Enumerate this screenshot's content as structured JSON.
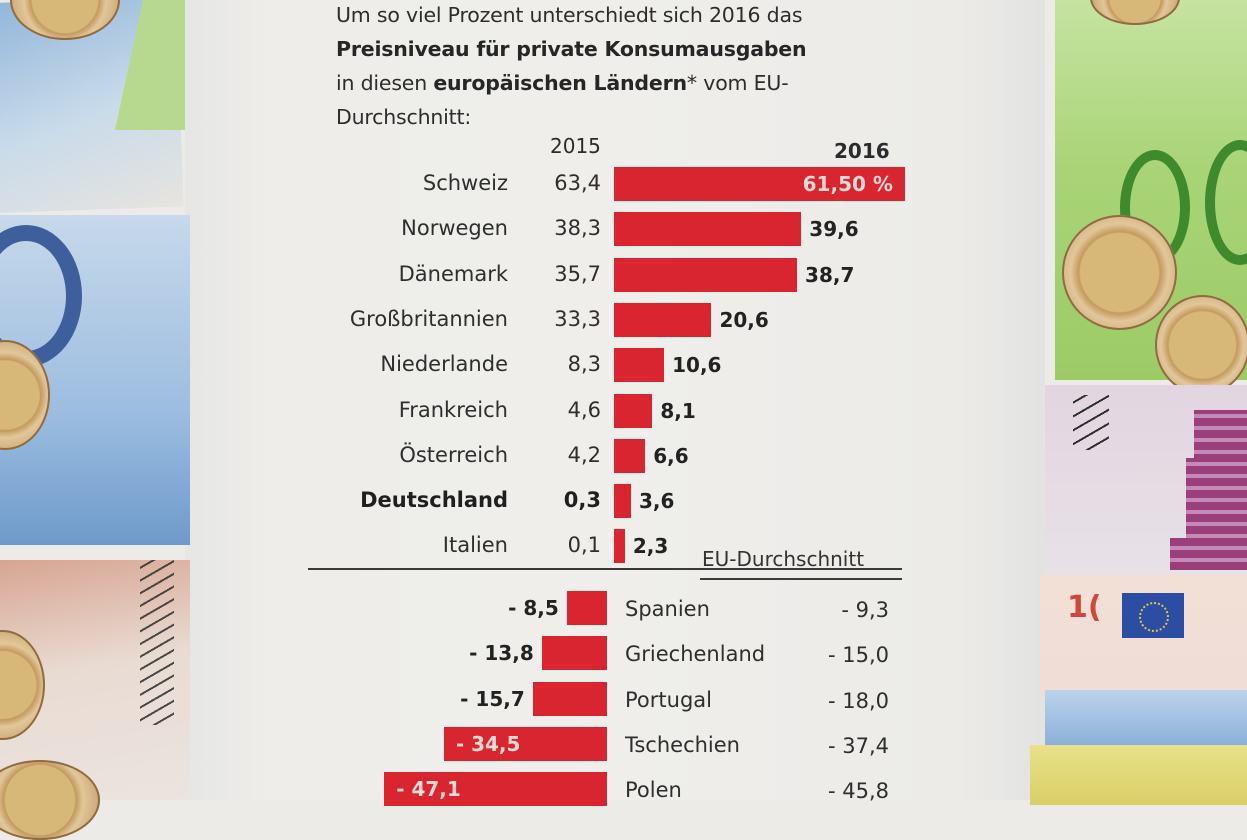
{
  "title": {
    "line1": "Um so viel Prozent unterschiedt sich 2016 das",
    "line2_bold": "Preisniveau für private Konsumausgaben",
    "line3_pre": "in diesen ",
    "line3_bold": "europäischen Ländern",
    "line3_post": "* vom EU-",
    "line4": "Durchschnitt:"
  },
  "headers": {
    "col_2015": "2015",
    "col_2016": "2016"
  },
  "eu_average_label": "EU-Durchschnitt",
  "colors": {
    "bar": "#d8252f",
    "text": "#2e2e2e",
    "paper": "#efeeeb"
  },
  "chart_data": {
    "type": "bar",
    "orientation": "horizontal",
    "title": "Um so viel Prozent unterschiedt sich 2016 das Preisniveau für private Konsumausgaben in diesen europäischen Ländern* vom EU-Durchschnitt:",
    "reference_line": "EU-Durchschnitt",
    "series": [
      {
        "name": "2016",
        "drawn_as": "bars"
      },
      {
        "name": "2015",
        "drawn_as": "text"
      }
    ],
    "above_average": [
      {
        "country": "Schweiz",
        "v2015": "63,4",
        "v2016": "61,50 %",
        "value2016": 61.5,
        "bold": false,
        "label_inside": true
      },
      {
        "country": "Norwegen",
        "v2015": "38,3",
        "v2016": "39,6",
        "value2016": 39.6,
        "bold": false,
        "label_inside": false
      },
      {
        "country": "Dänemark",
        "v2015": "35,7",
        "v2016": "38,7",
        "value2016": 38.7,
        "bold": false,
        "label_inside": false
      },
      {
        "country": "Großbritannien",
        "v2015": "33,3",
        "v2016": "20,6",
        "value2016": 20.6,
        "bold": false,
        "label_inside": false
      },
      {
        "country": "Niederlande",
        "v2015": "8,3",
        "v2016": "10,6",
        "value2016": 10.6,
        "bold": false,
        "label_inside": false
      },
      {
        "country": "Frankreich",
        "v2015": "4,6",
        "v2016": "8,1",
        "value2016": 8.1,
        "bold": false,
        "label_inside": false
      },
      {
        "country": "Österreich",
        "v2015": "4,2",
        "v2016": "6,6",
        "value2016": 6.6,
        "bold": false,
        "label_inside": false
      },
      {
        "country": "Deutschland",
        "v2015": "0,3",
        "v2016": "3,6",
        "value2016": 3.6,
        "bold": true,
        "label_inside": false
      },
      {
        "country": "Italien",
        "v2015": "0,1",
        "v2016": "2,3",
        "value2016": 2.3,
        "bold": false,
        "label_inside": false
      }
    ],
    "below_average": [
      {
        "country": "Spanien",
        "v2015": "- 9,3",
        "v2016": "- 8,5",
        "value2016": -8.5,
        "label_inside": false
      },
      {
        "country": "Griechenland",
        "v2015": "- 15,0",
        "v2016": "- 13,8",
        "value2016": -13.8,
        "label_inside": false
      },
      {
        "country": "Portugal",
        "v2015": "- 18,0",
        "v2016": "- 15,7",
        "value2016": -15.7,
        "label_inside": false
      },
      {
        "country": "Tschechien",
        "v2015": "- 37,4",
        "v2016": "- 34,5",
        "value2016": -34.5,
        "label_inside": true
      },
      {
        "country": "Polen",
        "v2015": "- 45,8",
        "v2016": "- 47,1",
        "value2016": -47.1,
        "label_inside": true
      }
    ]
  }
}
